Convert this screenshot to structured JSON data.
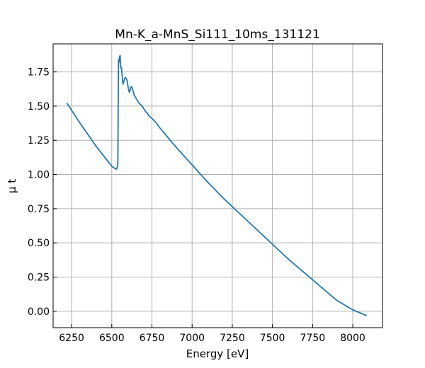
{
  "chart_data": {
    "type": "line",
    "title": "Mn-K_a-MnS_Si111_10ms_131121",
    "xlabel": "Energy [eV]",
    "ylabel": "μ t",
    "xlim": [
      6135,
      8185
    ],
    "ylim": [
      -0.12,
      1.955
    ],
    "grid": true,
    "xticks": [
      6250,
      6500,
      6750,
      7000,
      7250,
      7500,
      7750,
      8000
    ],
    "xtick_labels": [
      "6250",
      "6500",
      "6750",
      "7000",
      "7250",
      "7500",
      "7750",
      "8000"
    ],
    "yticks": [
      0.0,
      0.25,
      0.5,
      0.75,
      1.0,
      1.25,
      1.5,
      1.75
    ],
    "ytick_labels": [
      "0.00",
      "0.25",
      "0.50",
      "0.75",
      "1.00",
      "1.25",
      "1.50",
      "1.75"
    ],
    "series": [
      {
        "color": "#1f77b4",
        "x": [
          6222,
          6300,
          6400,
          6500,
          6525,
          6530,
          6535,
          6538,
          6540,
          6542,
          6545,
          6548,
          6552,
          6556,
          6560,
          6565,
          6570,
          6575,
          6580,
          6585,
          6590,
          6595,
          6600,
          6605,
          6610,
          6615,
          6620,
          6625,
          6630,
          6635,
          6640,
          6645,
          6650,
          6660,
          6670,
          6680,
          6690,
          6700,
          6710,
          6720,
          6730,
          6740,
          6750,
          6775,
          6800,
          6850,
          6900,
          7000,
          7100,
          7200,
          7300,
          7400,
          7500,
          7600,
          7700,
          7800,
          7900,
          8000,
          8083
        ],
        "y": [
          1.52,
          1.38,
          1.21,
          1.06,
          1.04,
          1.04,
          1.06,
          1.08,
          1.52,
          1.84,
          1.82,
          1.86,
          1.87,
          1.78,
          1.78,
          1.72,
          1.66,
          1.68,
          1.7,
          1.71,
          1.7,
          1.69,
          1.65,
          1.62,
          1.6,
          1.62,
          1.64,
          1.64,
          1.62,
          1.6,
          1.58,
          1.57,
          1.56,
          1.54,
          1.52,
          1.51,
          1.5,
          1.48,
          1.46,
          1.45,
          1.43,
          1.42,
          1.41,
          1.38,
          1.34,
          1.27,
          1.2,
          1.07,
          0.94,
          0.82,
          0.71,
          0.6,
          0.49,
          0.38,
          0.28,
          0.18,
          0.08,
          0.01,
          -0.03
        ]
      }
    ]
  }
}
